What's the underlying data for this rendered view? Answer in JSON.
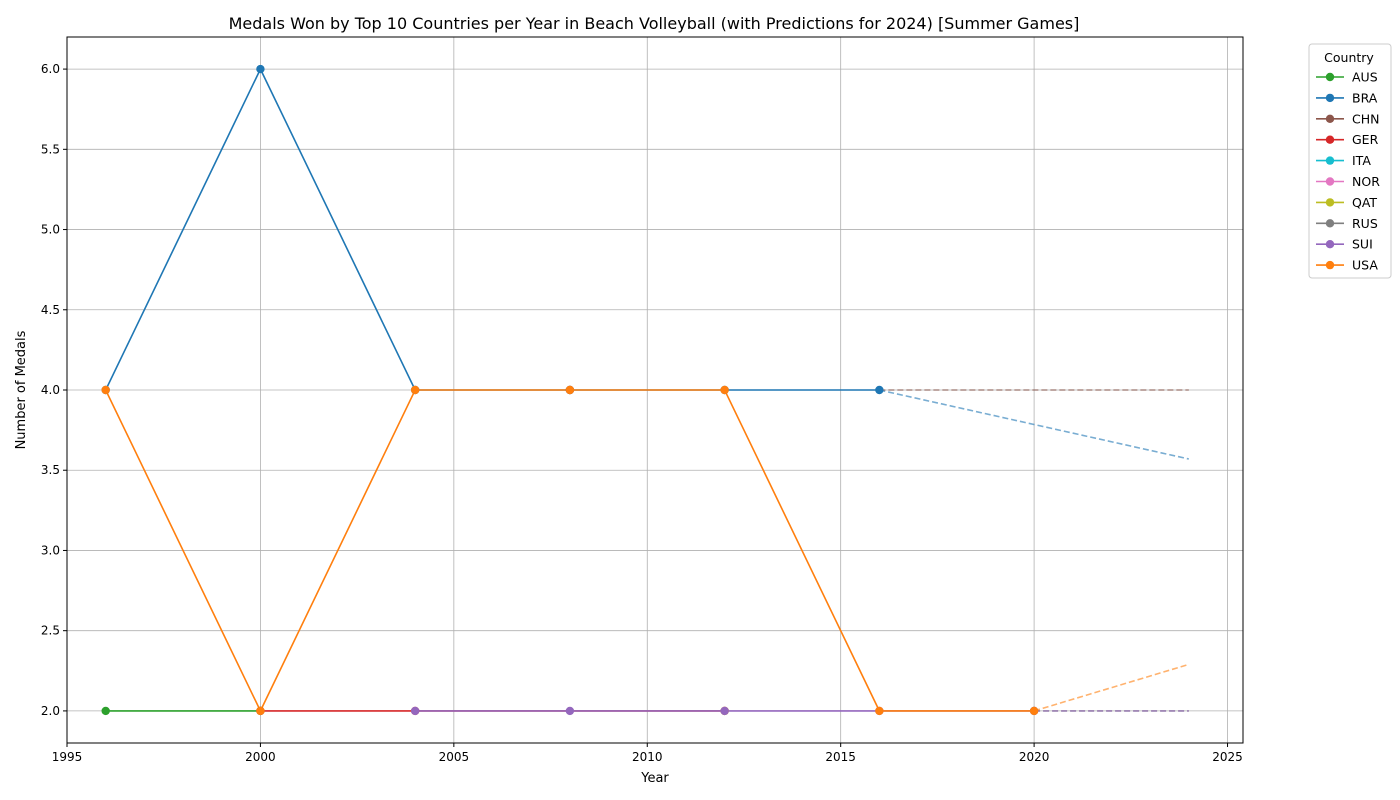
{
  "chart_data": {
    "type": "line",
    "title": "Medals Won by Top 10 Countries per Year in Beach Volleyball (with Predictions for 2024) [Summer Games]",
    "xlabel": "Year",
    "ylabel": "Number of Medals",
    "xlim": [
      1995,
      2025.4
    ],
    "ylim": [
      1.8,
      6.2
    ],
    "xticks": [
      1995,
      2000,
      2005,
      2010,
      2015,
      2020,
      2025
    ],
    "yticks": [
      2.0,
      2.5,
      3.0,
      3.5,
      4.0,
      4.5,
      5.0,
      5.5,
      6.0
    ],
    "ytick_labels": [
      "2.0",
      "2.5",
      "3.0",
      "3.5",
      "4.0",
      "4.5",
      "5.0",
      "5.5",
      "6.0"
    ],
    "grid": true,
    "legend": {
      "title": "Country",
      "placement": "outside-top-right"
    },
    "series": [
      {
        "name": "AUS",
        "color": "#2ca02c",
        "x": [
          1996,
          2000
        ],
        "y": [
          2,
          2
        ],
        "prediction": null
      },
      {
        "name": "BRA",
        "color": "#1f77b4",
        "x": [
          1996,
          2000,
          2004,
          2008,
          2012,
          2016
        ],
        "y": [
          4,
          6,
          4,
          4,
          4,
          4
        ],
        "prediction": {
          "x": [
            2016,
            2024
          ],
          "y": [
            4,
            3.57
          ]
        }
      },
      {
        "name": "CHN",
        "color": "#8c564b",
        "x": [
          2008
        ],
        "y": [
          4
        ],
        "prediction": {
          "x": [
            2016,
            2024
          ],
          "y": [
            4,
            4
          ]
        }
      },
      {
        "name": "GER",
        "color": "#d62728",
        "x": [
          2000,
          2004,
          2012
        ],
        "y": [
          2,
          2,
          2
        ],
        "prediction": null
      },
      {
        "name": "ITA",
        "color": "#17becf",
        "x": [],
        "y": [],
        "prediction": null
      },
      {
        "name": "NOR",
        "color": "#e377c2",
        "x": [
          2012
        ],
        "y": [
          2
        ],
        "prediction": null
      },
      {
        "name": "QAT",
        "color": "#bcbd22",
        "x": [
          2012
        ],
        "y": [
          2
        ],
        "prediction": null
      },
      {
        "name": "RUS",
        "color": "#7f7f7f",
        "x": [
          2020
        ],
        "y": [
          2
        ],
        "prediction": {
          "x": [
            2020,
            2024
          ],
          "y": [
            2,
            2
          ]
        }
      },
      {
        "name": "SUI",
        "color": "#9467bd",
        "x": [
          2004,
          2008,
          2012,
          2016,
          2020
        ],
        "y": [
          2,
          2,
          2,
          2,
          2
        ],
        "prediction": {
          "x": [
            2020,
            2024
          ],
          "y": [
            2,
            2
          ]
        }
      },
      {
        "name": "USA",
        "color": "#ff7f0e",
        "x": [
          1996,
          2000,
          2004,
          2008,
          2012,
          2016,
          2020
        ],
        "y": [
          4,
          2,
          4,
          4,
          4,
          2,
          2
        ],
        "prediction": {
          "x": [
            2020,
            2024
          ],
          "y": [
            2,
            2.29
          ]
        }
      }
    ]
  }
}
